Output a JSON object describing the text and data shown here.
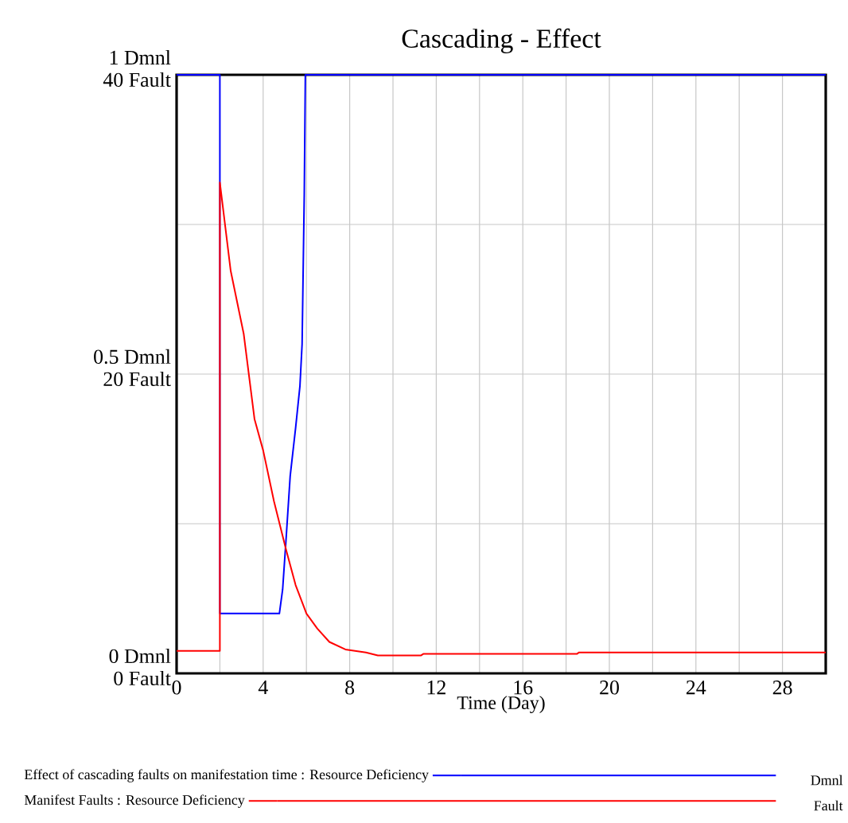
{
  "chart_data": {
    "type": "line",
    "title": "Cascading - Effect",
    "xlabel": "Time (Day)",
    "annotations": [
      "Dmnl",
      "Fault"
    ],
    "xlim": [
      0,
      30
    ],
    "xticks": [
      0,
      {
        "value": 2,
        "label": null
      },
      4,
      {
        "value": 6,
        "label": null
      },
      8,
      {
        "value": 10,
        "label": null
      },
      12,
      {
        "value": 14,
        "label": null
      },
      16,
      {
        "value": 18,
        "label": null
      },
      20,
      {
        "value": 22,
        "label": null
      },
      24,
      {
        "value": 26,
        "label": null
      },
      28
    ],
    "ylim": [
      0,
      1
    ],
    "yticks": [
      {
        "value": 0,
        "label": "0 Dmnl"
      },
      {
        "value": 0.25,
        "label": null
      },
      {
        "value": 0.5,
        "label": "0.5 Dmnl"
      },
      {
        "value": 0.75,
        "label": null
      },
      {
        "value": 1,
        "label": "1 Dmnl"
      }
    ],
    "y2lim": [
      0,
      40
    ],
    "y2ticks": [
      {
        "value": 0,
        "label": "0 Fault"
      },
      {
        "value": 20,
        "label": "20 Fault"
      },
      {
        "value": 40,
        "label": "40 Fault"
      }
    ],
    "grid": true,
    "legend": "bottom",
    "series": [
      {
        "name": "Effect of cascading faults on manifestation time : Resource Deficiency",
        "color": "#0000ff",
        "x": [
          0,
          2,
          2,
          4.75,
          4.9,
          5.07,
          5.25,
          5.5,
          5.7,
          5.8,
          5.9,
          5.95,
          30
        ],
        "values": [
          1,
          1,
          0.1,
          0.1,
          0.14,
          0.23,
          0.33,
          0.41,
          0.48,
          0.55,
          0.8,
          1,
          1
        ]
      },
      {
        "name": "Manifest Faults : Resource Deficiency",
        "color": "#ff0000",
        "axis": "y2",
        "x": [
          0,
          2,
          2,
          2.5,
          3.1,
          3.6,
          4.0,
          4.5,
          5.07,
          5.5,
          6.0,
          6.5,
          7.06,
          7.8,
          8.75,
          9.3,
          11.3,
          11.4,
          18.5,
          18.6,
          30
        ],
        "values": [
          1.5,
          1.5,
          32.8,
          26.9,
          22.7,
          17,
          14.9,
          11.5,
          8.2,
          5.9,
          4.0,
          3.0,
          2.1,
          1.6,
          1.4,
          1.2,
          1.2,
          1.3,
          1.3,
          1.4,
          1.4
        ]
      }
    ]
  }
}
